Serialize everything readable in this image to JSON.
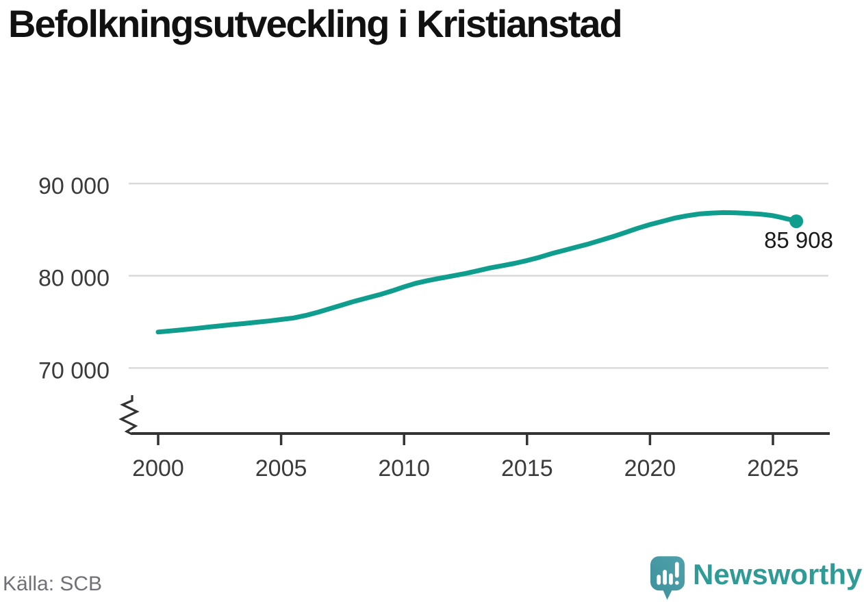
{
  "title": "Befolkningsutveckling i Kristianstad",
  "source": "Källa: SCB",
  "branding": {
    "name": "Newsworthy",
    "logo_icon": "newsworthy-speech-bubble-bar-chart-icon"
  },
  "colors": {
    "line": "#0f9e8e",
    "grid": "#d9d9d9",
    "axis": "#333333",
    "tick_label": "#3b3b3b",
    "title_text": "#111111",
    "end_label_text": "#1a1a1a",
    "source_text": "#717077",
    "brand_teal": "#2f9b96",
    "logo_fill_light": "#4fa2ab",
    "logo_fill_dark": "#3e8f9a"
  },
  "chart_data": {
    "type": "line",
    "title": "Befolkningsutveckling i Kristianstad",
    "legend": "none",
    "grid": "horizontal",
    "x_axis": {
      "ticks": [
        2000,
        2005,
        2010,
        2015,
        2020,
        2025
      ],
      "labels": [
        "2000",
        "2005",
        "2010",
        "2015",
        "2020",
        "2025"
      ],
      "range": [
        1999,
        2026.3
      ]
    },
    "y_axis": {
      "ticks": [
        90000,
        80000,
        70000
      ],
      "labels": [
        "90 000",
        "80 000",
        "70 000"
      ],
      "range_shown": [
        65000,
        90000
      ],
      "broken_axis": true
    },
    "end_label": "85 908",
    "end_value": 85908,
    "series": [
      {
        "name": "Befolkning",
        "points": [
          [
            2000,
            73900
          ],
          [
            2000.5,
            74020
          ],
          [
            2001,
            74150
          ],
          [
            2001.5,
            74280
          ],
          [
            2002,
            74430
          ],
          [
            2002.5,
            74560
          ],
          [
            2003,
            74700
          ],
          [
            2003.5,
            74820
          ],
          [
            2004,
            74960
          ],
          [
            2004.5,
            75100
          ],
          [
            2005,
            75260
          ],
          [
            2005.5,
            75420
          ],
          [
            2006,
            75700
          ],
          [
            2006.5,
            76050
          ],
          [
            2007,
            76450
          ],
          [
            2007.5,
            76850
          ],
          [
            2008,
            77250
          ],
          [
            2008.5,
            77600
          ],
          [
            2009,
            77950
          ],
          [
            2009.5,
            78350
          ],
          [
            2010,
            78800
          ],
          [
            2010.5,
            79200
          ],
          [
            2011,
            79500
          ],
          [
            2011.5,
            79750
          ],
          [
            2012,
            80000
          ],
          [
            2012.5,
            80250
          ],
          [
            2013,
            80550
          ],
          [
            2013.5,
            80850
          ],
          [
            2014,
            81100
          ],
          [
            2014.5,
            81350
          ],
          [
            2015,
            81650
          ],
          [
            2015.5,
            82000
          ],
          [
            2016,
            82400
          ],
          [
            2016.5,
            82750
          ],
          [
            2017,
            83100
          ],
          [
            2017.5,
            83450
          ],
          [
            2018,
            83850
          ],
          [
            2018.5,
            84250
          ],
          [
            2019,
            84700
          ],
          [
            2019.5,
            85150
          ],
          [
            2020,
            85550
          ],
          [
            2020.5,
            85900
          ],
          [
            2021,
            86250
          ],
          [
            2021.5,
            86500
          ],
          [
            2022,
            86700
          ],
          [
            2022.5,
            86800
          ],
          [
            2023,
            86850
          ],
          [
            2023.5,
            86830
          ],
          [
            2024,
            86760
          ],
          [
            2024.5,
            86680
          ],
          [
            2025,
            86520
          ],
          [
            2025.3,
            86350
          ],
          [
            2025.6,
            86150
          ],
          [
            2025.8,
            86050
          ],
          [
            2025.95,
            85908
          ]
        ]
      }
    ]
  }
}
